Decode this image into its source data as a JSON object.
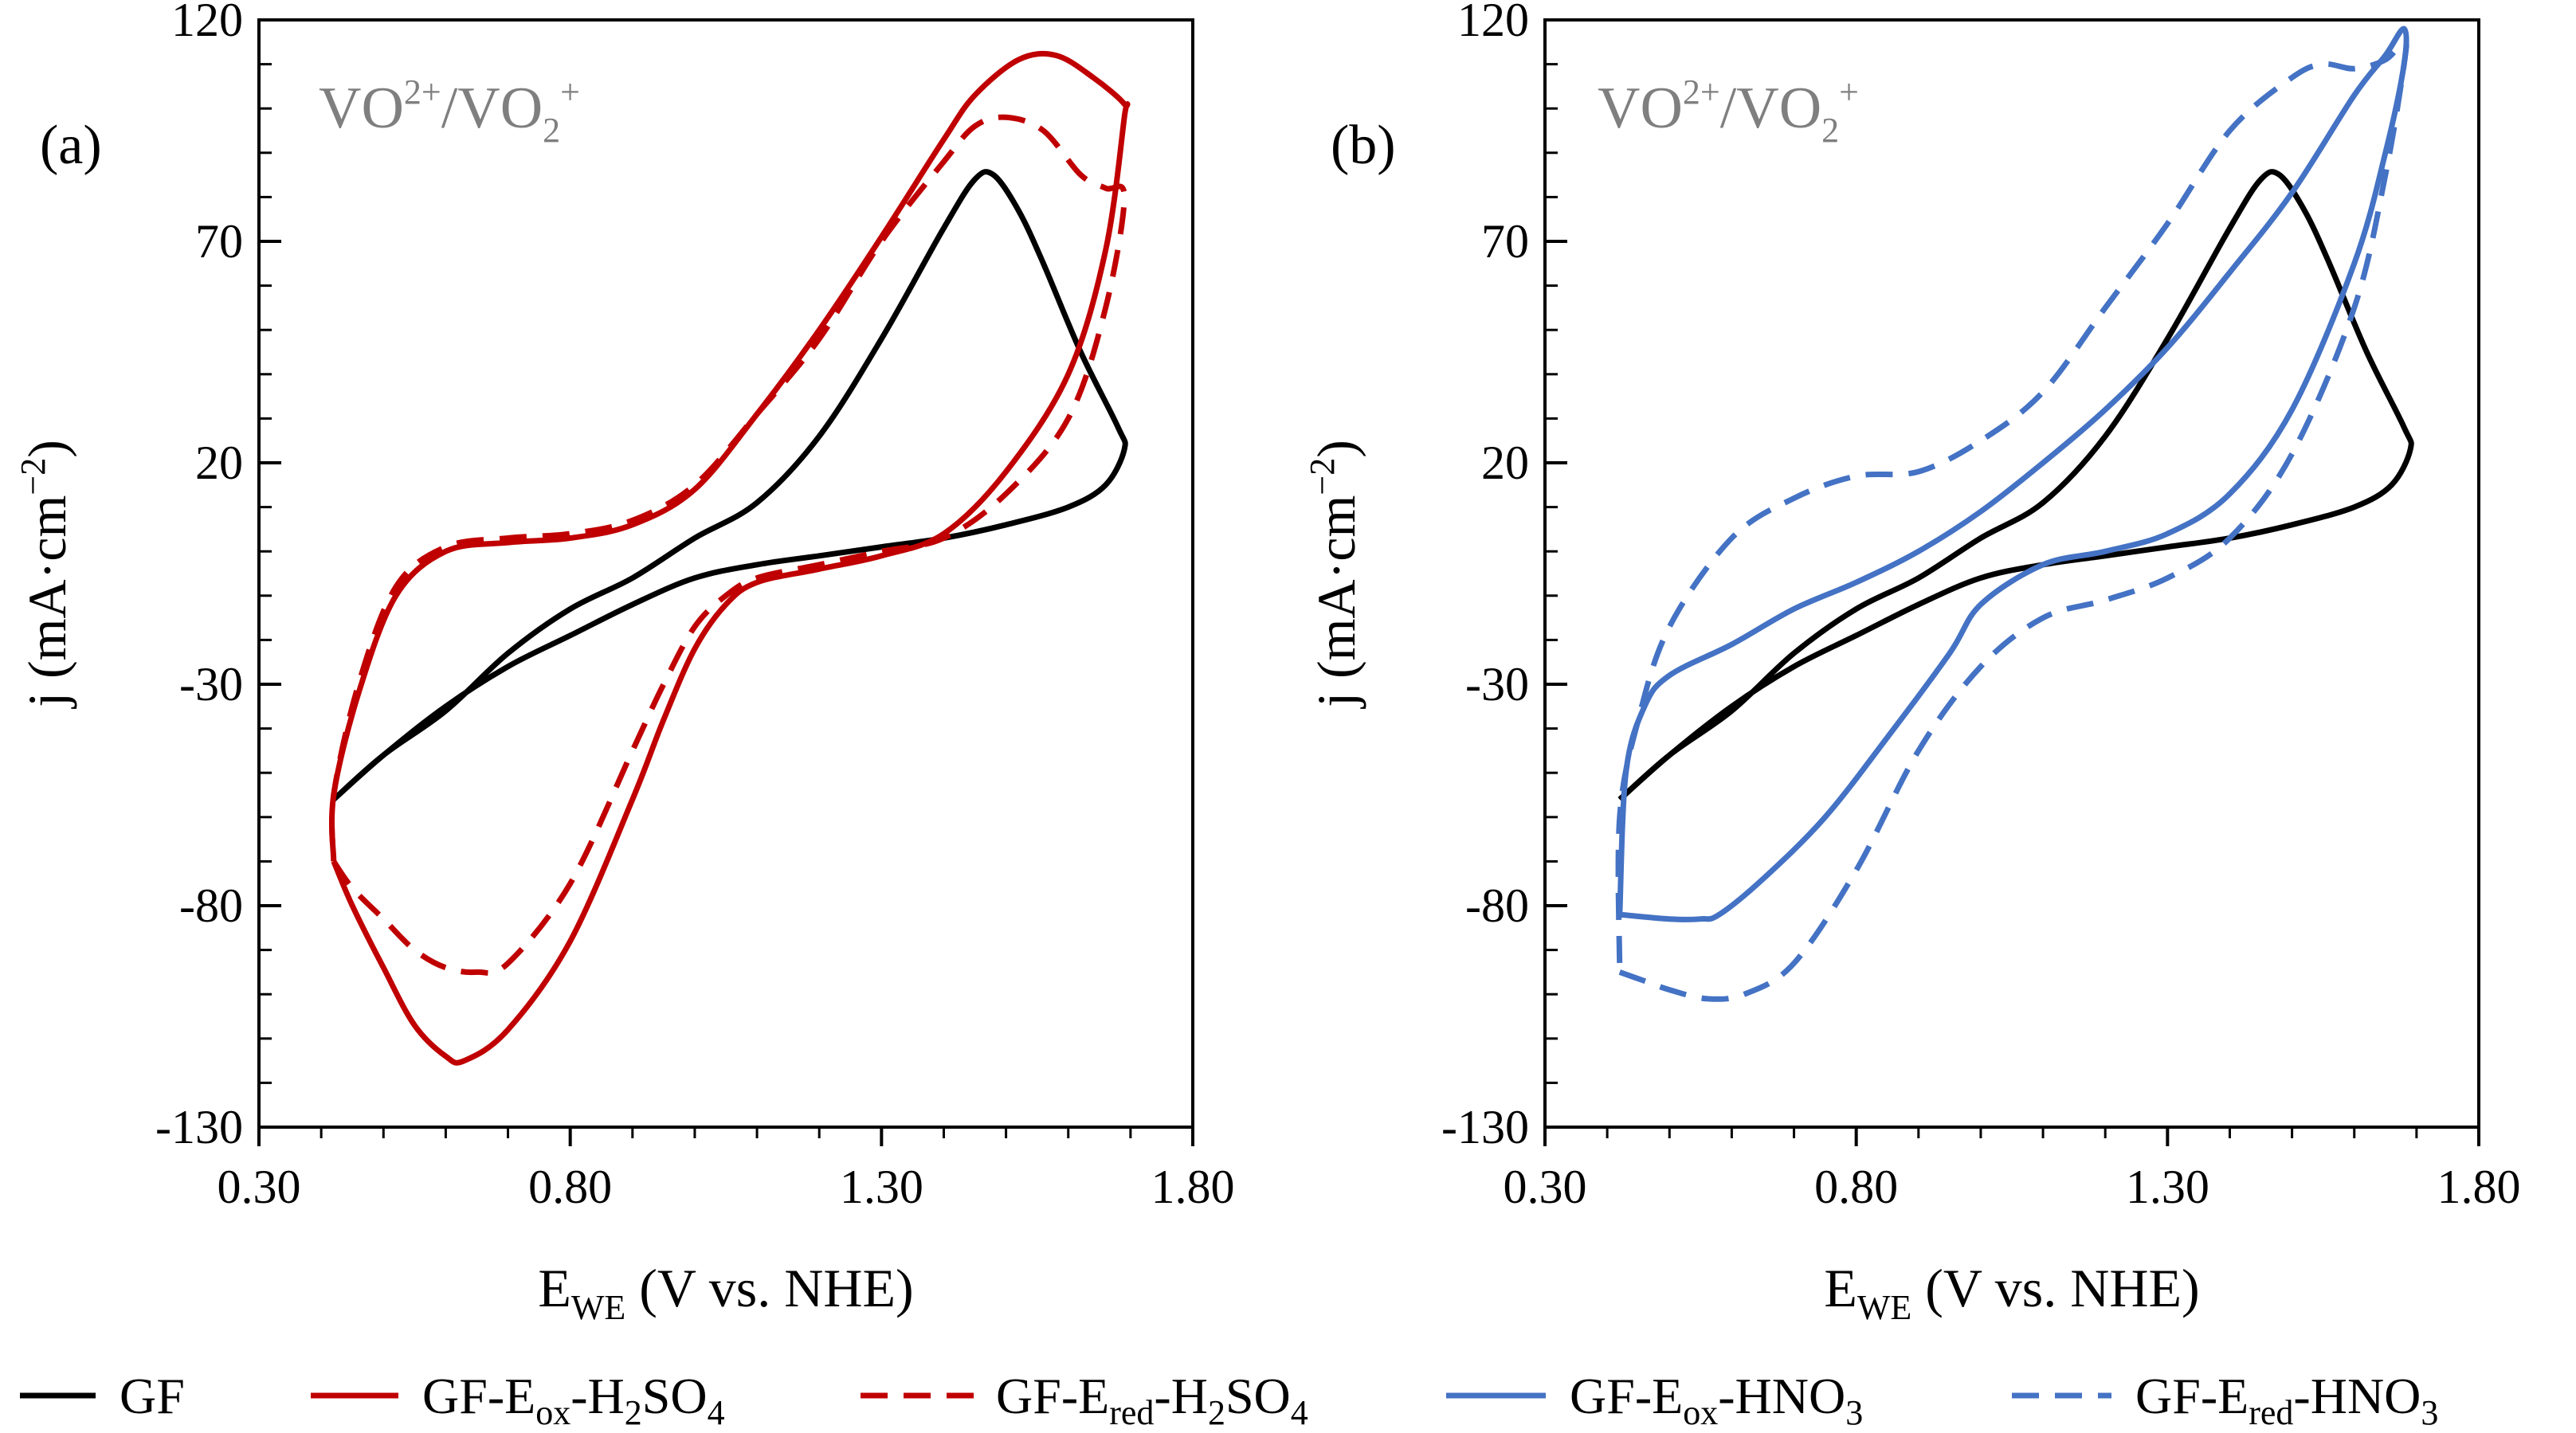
{
  "figure": {
    "legend": [
      {
        "key": "GF",
        "base": "GF",
        "sub": "",
        "rest": "",
        "sub2": "",
        "color": "#000000",
        "dash": false
      },
      {
        "key": "ox_h2so4",
        "base": "GF-E",
        "sub": "ox",
        "rest": "-H",
        "sub2": "2",
        "rest2": "SO",
        "sub3": "4",
        "color": "#c00000",
        "dash": false
      },
      {
        "key": "red_h2so4",
        "base": "GF-E",
        "sub": "red",
        "rest": "-H",
        "sub2": "2",
        "rest2": "SO",
        "sub3": "4",
        "color": "#c00000",
        "dash": true
      },
      {
        "key": "ox_hno3",
        "base": "GF-E",
        "sub": "ox",
        "rest": "-HNO",
        "sub2": "3",
        "rest2": "",
        "sub3": "",
        "color": "#4472c4",
        "dash": false
      },
      {
        "key": "red_hno3",
        "base": "GF-E",
        "sub": "red",
        "rest": "-HNO",
        "sub2": "3",
        "rest2": "",
        "sub3": "",
        "color": "#4472c4",
        "dash": true
      }
    ],
    "legend_text": [
      "GF",
      "GF-Eox-H2SO4",
      "GF-Ered-H2SO4",
      "GF-Eox-HNO3",
      "GF-Ered-HNO3"
    ]
  },
  "chart_data": [
    {
      "type": "line",
      "panel": "(a)",
      "annotation": "VO2+/VO2+",
      "annotation_parts": {
        "a": "VO",
        "b": "2+",
        "c": "/VO",
        "d": "2",
        "e": "+"
      },
      "xlabel": "EWE (V vs. NHE)",
      "xlabel_parts": {
        "a": "E",
        "b": "WE",
        "c": " (V vs. NHE)"
      },
      "ylabel": "j (mA·cm−2)",
      "ylabel_parts": {
        "a": "j (mA·cm",
        "b": "−2",
        "c": ")"
      },
      "xlim": [
        0.3,
        1.8
      ],
      "ylim": [
        -130,
        120
      ],
      "xticks": [
        "0.30",
        "0.80",
        "1.30",
        "1.80"
      ],
      "yticks": [
        "120",
        "70",
        "20",
        "-30",
        "-80",
        "-130"
      ],
      "series": [
        {
          "name": "GF",
          "color": "#000000",
          "dash": false,
          "points": [
            [
              0.42,
              -56
            ],
            [
              0.5,
              -46
            ],
            [
              0.6,
              -35
            ],
            [
              0.7,
              -26
            ],
            [
              0.8,
              -19
            ],
            [
              0.9,
              -12
            ],
            [
              1.0,
              -6
            ],
            [
              1.1,
              -3
            ],
            [
              1.2,
              -1
            ],
            [
              1.3,
              1
            ],
            [
              1.4,
              3
            ],
            [
              1.5,
              6
            ],
            [
              1.6,
              10
            ],
            [
              1.66,
              15
            ],
            [
              1.69,
              23
            ],
            [
              1.68,
              28
            ],
            [
              1.62,
              45
            ],
            [
              1.56,
              65
            ],
            [
              1.52,
              77
            ],
            [
              1.48,
              85
            ],
            [
              1.45,
              84
            ],
            [
              1.4,
              73
            ],
            [
              1.3,
              48
            ],
            [
              1.2,
              26
            ],
            [
              1.1,
              11
            ],
            [
              1.0,
              3
            ],
            [
              0.9,
              -6
            ],
            [
              0.8,
              -13
            ],
            [
              0.7,
              -23
            ],
            [
              0.6,
              -36
            ],
            [
              0.5,
              -46
            ],
            [
              0.42,
              -56
            ]
          ]
        },
        {
          "name": "GF-Eox-H2SO4",
          "color": "#c00000",
          "dash": false,
          "points": [
            [
              0.42,
              -70
            ],
            [
              0.45,
              -80
            ],
            [
              0.5,
              -94
            ],
            [
              0.55,
              -107
            ],
            [
              0.6,
              -114
            ],
            [
              0.63,
              -115
            ],
            [
              0.7,
              -108
            ],
            [
              0.8,
              -88
            ],
            [
              0.9,
              -56
            ],
            [
              0.95,
              -38
            ],
            [
              1.0,
              -22
            ],
            [
              1.05,
              -12
            ],
            [
              1.1,
              -7
            ],
            [
              1.2,
              -4
            ],
            [
              1.3,
              -1
            ],
            [
              1.4,
              4
            ],
            [
              1.5,
              18
            ],
            [
              1.6,
              40
            ],
            [
              1.66,
              68
            ],
            [
              1.69,
              98
            ],
            [
              1.69,
              101
            ],
            [
              1.64,
              107
            ],
            [
              1.58,
              112
            ],
            [
              1.52,
              111
            ],
            [
              1.45,
              103
            ],
            [
              1.4,
              93
            ],
            [
              1.3,
              71
            ],
            [
              1.2,
              50
            ],
            [
              1.1,
              31
            ],
            [
              1.0,
              14
            ],
            [
              0.9,
              6
            ],
            [
              0.8,
              3
            ],
            [
              0.7,
              2
            ],
            [
              0.6,
              0
            ],
            [
              0.52,
              -10
            ],
            [
              0.46,
              -32
            ],
            [
              0.42,
              -55
            ],
            [
              0.42,
              -70
            ]
          ]
        },
        {
          "name": "GF-Ered-H2SO4",
          "color": "#c00000",
          "dash": true,
          "points": [
            [
              0.42,
              -70
            ],
            [
              0.45,
              -76
            ],
            [
              0.5,
              -83
            ],
            [
              0.55,
              -90
            ],
            [
              0.6,
              -94
            ],
            [
              0.65,
              -95
            ],
            [
              0.7,
              -93
            ],
            [
              0.8,
              -75
            ],
            [
              0.9,
              -45
            ],
            [
              0.95,
              -30
            ],
            [
              1.0,
              -17
            ],
            [
              1.05,
              -10
            ],
            [
              1.1,
              -6
            ],
            [
              1.2,
              -3
            ],
            [
              1.3,
              0
            ],
            [
              1.4,
              3
            ],
            [
              1.5,
              13
            ],
            [
              1.6,
              30
            ],
            [
              1.66,
              55
            ],
            [
              1.69,
              80
            ],
            [
              1.66,
              82
            ],
            [
              1.62,
              85
            ],
            [
              1.56,
              95
            ],
            [
              1.5,
              98
            ],
            [
              1.45,
              96
            ],
            [
              1.4,
              88
            ],
            [
              1.3,
              70
            ],
            [
              1.2,
              48
            ],
            [
              1.1,
              31
            ],
            [
              1.0,
              15
            ],
            [
              0.9,
              7
            ],
            [
              0.8,
              4
            ],
            [
              0.7,
              3
            ],
            [
              0.6,
              1
            ],
            [
              0.52,
              -8
            ],
            [
              0.46,
              -30
            ],
            [
              0.42,
              -55
            ],
            [
              0.42,
              -70
            ]
          ]
        },
        {
          "name": "",
          "color": "#000000",
          "dash": false,
          "points": []
        }
      ]
    },
    {
      "type": "line",
      "panel": "(b)",
      "annotation": "VO2+/VO2+",
      "annotation_parts": {
        "a": "VO",
        "b": "2+",
        "c": "/VO",
        "d": "2",
        "e": "+"
      },
      "xlabel": "EWE (V vs. NHE)",
      "xlabel_parts": {
        "a": "E",
        "b": "WE",
        "c": " (V vs. NHE)"
      },
      "ylabel": "j (mA·cm−2)",
      "ylabel_parts": {
        "a": "j (mA·cm",
        "b": "−2",
        "c": ")"
      },
      "xlim": [
        0.3,
        1.8
      ],
      "ylim": [
        -130,
        120
      ],
      "xticks": [
        "0.30",
        "0.80",
        "1.30",
        "1.80"
      ],
      "yticks": [
        "120",
        "70",
        "20",
        "-30",
        "-80",
        "-130"
      ],
      "series": [
        {
          "name": "GF",
          "color": "#000000",
          "dash": false,
          "points": [
            [
              0.42,
              -56
            ],
            [
              0.5,
              -46
            ],
            [
              0.6,
              -35
            ],
            [
              0.7,
              -26
            ],
            [
              0.8,
              -19
            ],
            [
              0.9,
              -12
            ],
            [
              1.0,
              -6
            ],
            [
              1.1,
              -3
            ],
            [
              1.2,
              -1
            ],
            [
              1.3,
              1
            ],
            [
              1.4,
              3
            ],
            [
              1.5,
              6
            ],
            [
              1.6,
              10
            ],
            [
              1.66,
              15
            ],
            [
              1.69,
              23
            ],
            [
              1.68,
              28
            ],
            [
              1.62,
              45
            ],
            [
              1.56,
              65
            ],
            [
              1.52,
              77
            ],
            [
              1.48,
              85
            ],
            [
              1.45,
              84
            ],
            [
              1.4,
              73
            ],
            [
              1.3,
              48
            ],
            [
              1.2,
              26
            ],
            [
              1.1,
              11
            ],
            [
              1.0,
              3
            ],
            [
              0.9,
              -6
            ],
            [
              0.8,
              -13
            ],
            [
              0.7,
              -23
            ],
            [
              0.6,
              -36
            ],
            [
              0.5,
              -46
            ],
            [
              0.42,
              -56
            ]
          ]
        },
        {
          "name": "GF-Eox-HNO3",
          "color": "#4472c4",
          "dash": false,
          "points": [
            [
              0.42,
              -82
            ],
            [
              0.5,
              -83
            ],
            [
              0.55,
              -83
            ],
            [
              0.58,
              -82
            ],
            [
              0.65,
              -74
            ],
            [
              0.75,
              -60
            ],
            [
              0.85,
              -42
            ],
            [
              0.95,
              -23
            ],
            [
              1.0,
              -12
            ],
            [
              1.1,
              -3
            ],
            [
              1.2,
              0
            ],
            [
              1.3,
              4
            ],
            [
              1.4,
              13
            ],
            [
              1.5,
              32
            ],
            [
              1.6,
              65
            ],
            [
              1.65,
              90
            ],
            [
              1.68,
              110
            ],
            [
              1.68,
              118
            ],
            [
              1.65,
              112
            ],
            [
              1.6,
              103
            ],
            [
              1.5,
              81
            ],
            [
              1.4,
              63
            ],
            [
              1.3,
              46
            ],
            [
              1.2,
              32
            ],
            [
              1.1,
              20
            ],
            [
              1.0,
              9
            ],
            [
              0.9,
              0
            ],
            [
              0.8,
              -7
            ],
            [
              0.7,
              -13
            ],
            [
              0.6,
              -21
            ],
            [
              0.5,
              -28
            ],
            [
              0.46,
              -35
            ],
            [
              0.43,
              -50
            ],
            [
              0.42,
              -82
            ]
          ]
        },
        {
          "name": "GF-Ered-HNO3",
          "color": "#4472c4",
          "dash": true,
          "points": [
            [
              0.42,
              -95
            ],
            [
              0.46,
              -97
            ],
            [
              0.5,
              -99
            ],
            [
              0.56,
              -101
            ],
            [
              0.62,
              -100
            ],
            [
              0.7,
              -93
            ],
            [
              0.8,
              -72
            ],
            [
              0.9,
              -45
            ],
            [
              1.0,
              -26
            ],
            [
              1.1,
              -15
            ],
            [
              1.2,
              -11
            ],
            [
              1.3,
              -6
            ],
            [
              1.4,
              3
            ],
            [
              1.5,
              22
            ],
            [
              1.6,
              55
            ],
            [
              1.65,
              85
            ],
            [
              1.68,
              110
            ],
            [
              1.68,
              115
            ],
            [
              1.65,
              111
            ],
            [
              1.6,
              109
            ],
            [
              1.55,
              110
            ],
            [
              1.5,
              107
            ],
            [
              1.4,
              95
            ],
            [
              1.3,
              74
            ],
            [
              1.2,
              55
            ],
            [
              1.1,
              36
            ],
            [
              1.0,
              25
            ],
            [
              0.9,
              18
            ],
            [
              0.8,
              17
            ],
            [
              0.7,
              12
            ],
            [
              0.6,
              3
            ],
            [
              0.5,
              -17
            ],
            [
              0.45,
              -38
            ],
            [
              0.42,
              -60
            ],
            [
              0.42,
              -95
            ]
          ]
        }
      ]
    }
  ]
}
